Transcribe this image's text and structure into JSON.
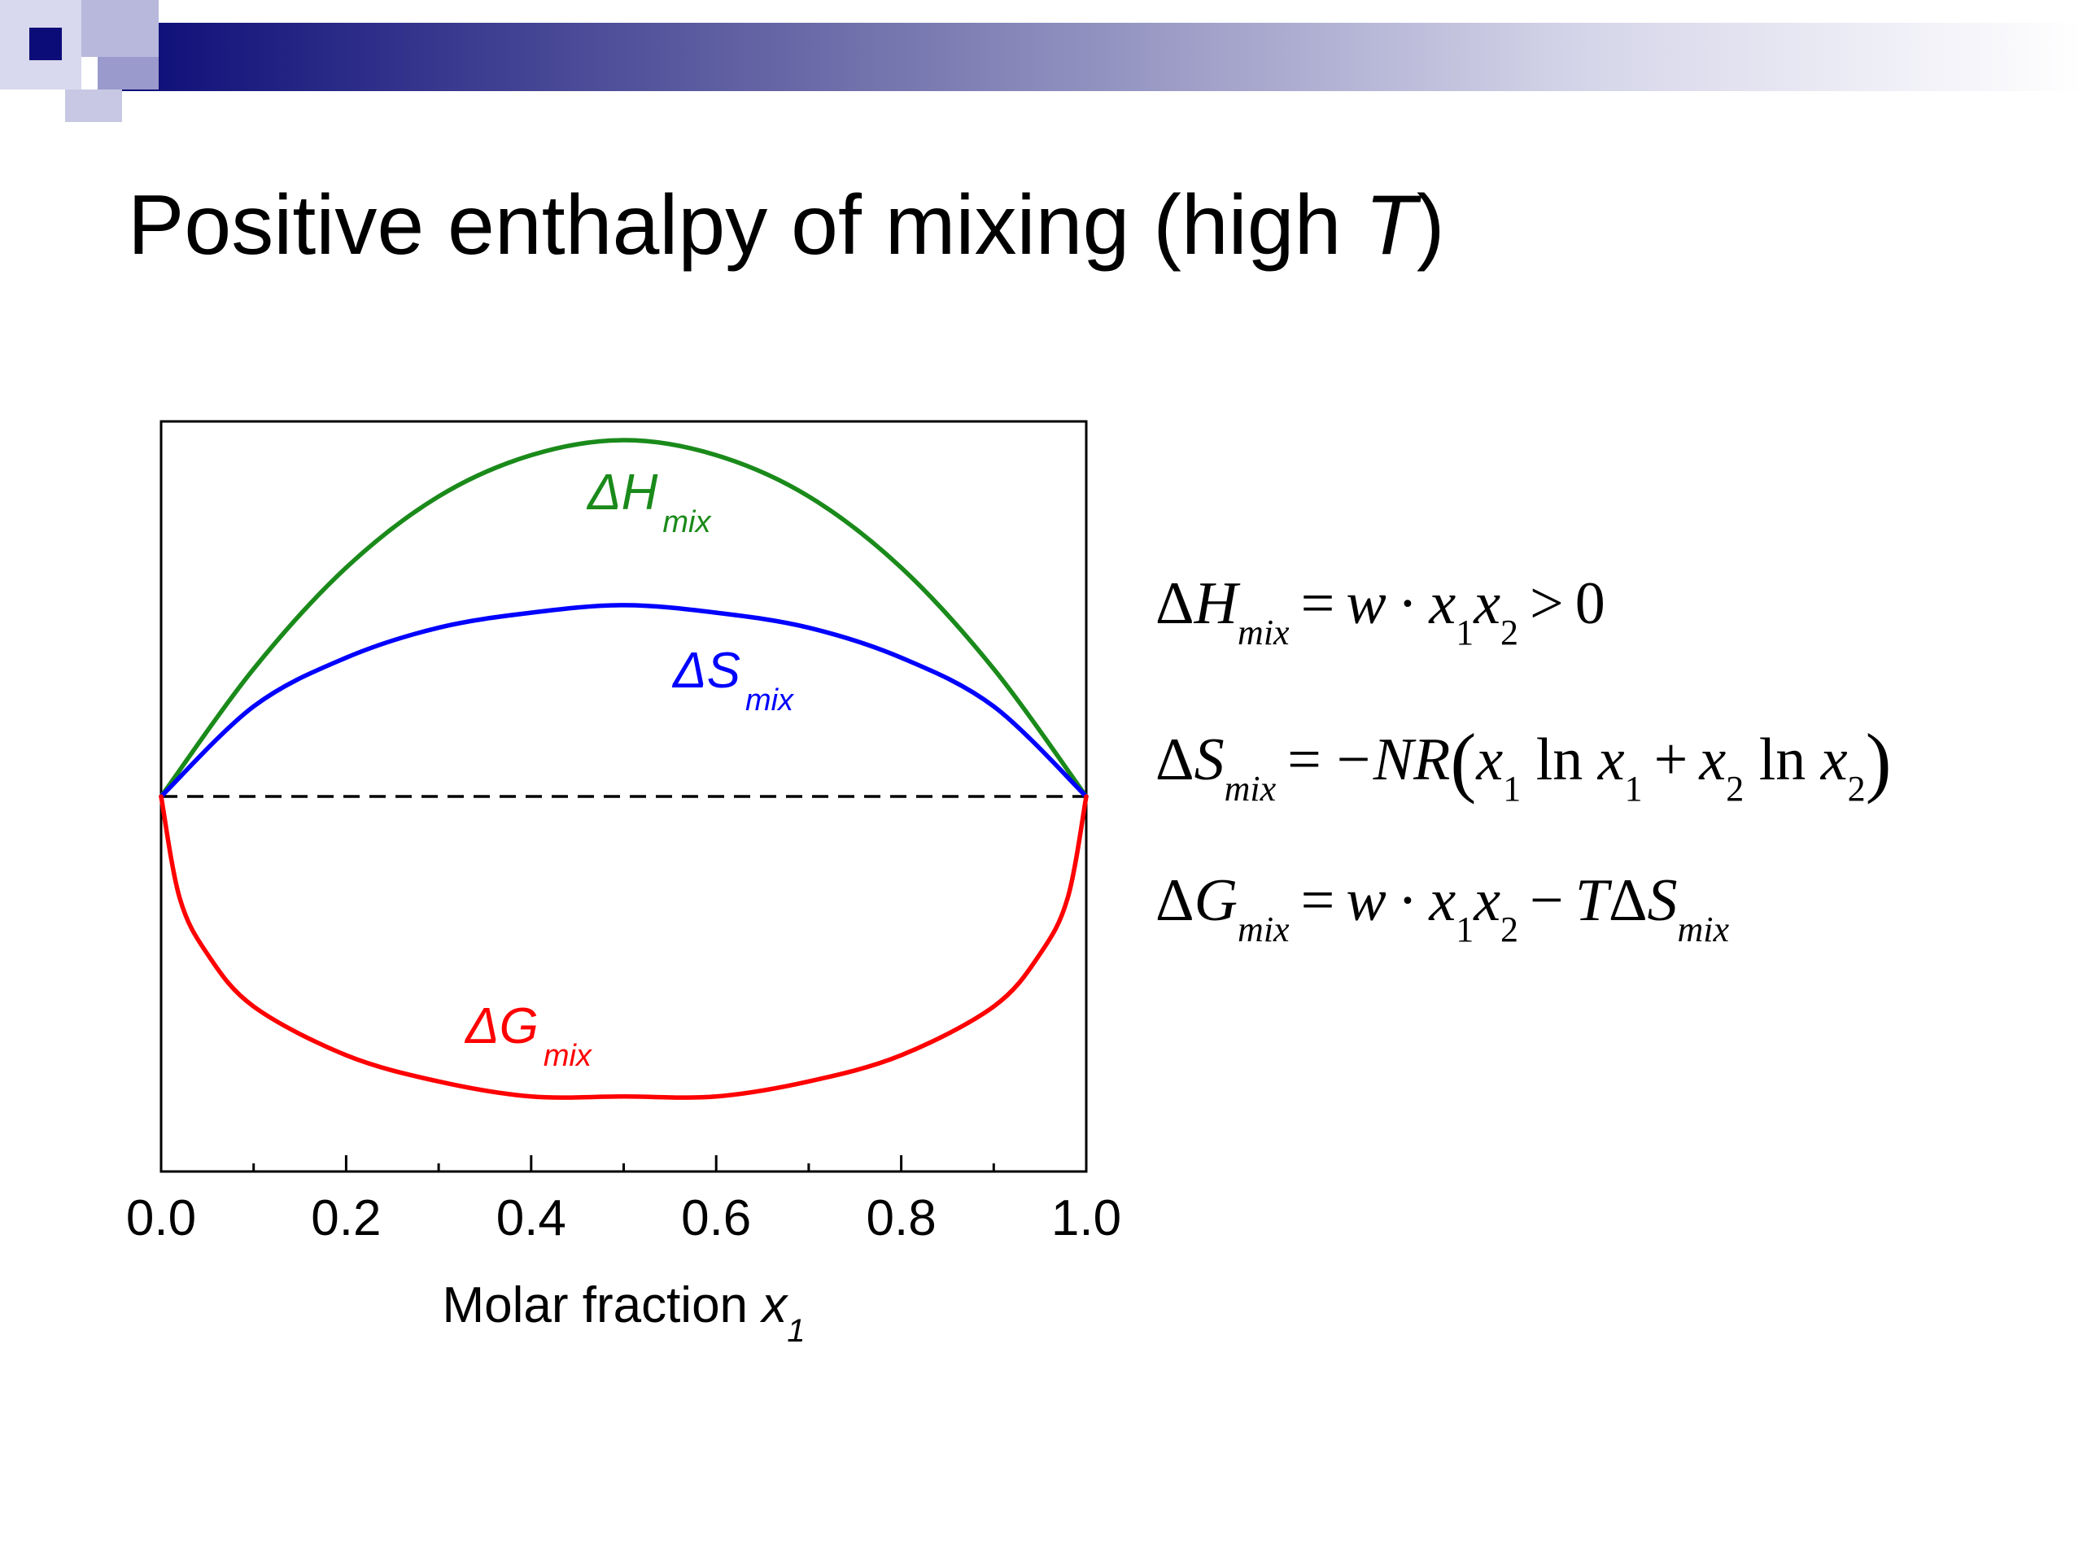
{
  "slide": {
    "title_main": "Positive enthalpy of mixing (high ",
    "title_var": "T",
    "title_close": ")"
  },
  "colors": {
    "h_curve": "#1a8a1a",
    "s_curve": "#0000ff",
    "g_curve": "#ff0000",
    "header_dark": "#0c0c78",
    "header_light": "#d8d8f0"
  },
  "chart_data": {
    "type": "line",
    "xlabel_main": "Molar fraction ",
    "xlabel_var": "x",
    "xlabel_sub": "1",
    "xlim": [
      0,
      1
    ],
    "ylim": [
      -1,
      1
    ],
    "x_ticks": [
      "0.0",
      "0.2",
      "0.4",
      "0.6",
      "0.8",
      "1.0"
    ],
    "zero_line": "dashed",
    "series": [
      {
        "name": "ΔH",
        "name_sub": "mix",
        "color": "#1a8a1a",
        "x": [
          0,
          0.1,
          0.2,
          0.3,
          0.4,
          0.5,
          0.6,
          0.7,
          0.8,
          0.9,
          1.0
        ],
        "y": [
          0,
          0.34,
          0.61,
          0.8,
          0.91,
          0.95,
          0.91,
          0.8,
          0.61,
          0.34,
          0
        ]
      },
      {
        "name": "ΔS",
        "name_sub": "mix",
        "color": "#0000ff",
        "x": [
          0,
          0.1,
          0.2,
          0.3,
          0.4,
          0.5,
          0.6,
          0.7,
          0.8,
          0.9,
          1.0
        ],
        "y": [
          0,
          0.24,
          0.37,
          0.45,
          0.49,
          0.51,
          0.49,
          0.45,
          0.37,
          0.24,
          0
        ]
      },
      {
        "name": "ΔG",
        "name_sub": "mix",
        "color": "#ff0000",
        "x": [
          0,
          0.02,
          0.05,
          0.1,
          0.2,
          0.3,
          0.4,
          0.5,
          0.6,
          0.7,
          0.8,
          0.9,
          0.95,
          0.98,
          1.0
        ],
        "y": [
          0,
          -0.27,
          -0.42,
          -0.56,
          -0.69,
          -0.76,
          -0.8,
          -0.8,
          -0.8,
          -0.76,
          -0.69,
          -0.56,
          -0.42,
          -0.27,
          0
        ]
      }
    ]
  },
  "equations": [
    {
      "lhs_delta": "Δ",
      "lhs_var": "H",
      "lhs_sub": "mix",
      "rhs_parts": [
        "=",
        "w",
        "·",
        "x",
        "1",
        "x",
        "2",
        ">",
        "0"
      ]
    },
    {
      "lhs_delta": "Δ",
      "lhs_var": "S",
      "lhs_sub": "mix",
      "rhs_parts": [
        "=",
        "−NR",
        "(",
        "x",
        "1",
        "ln",
        "x",
        "1",
        "+",
        "x",
        "2",
        "ln",
        "x",
        "2",
        ")"
      ]
    },
    {
      "lhs_delta": "Δ",
      "lhs_var": "G",
      "lhs_sub": "mix",
      "rhs_parts": [
        "=",
        "w",
        "·",
        "x",
        "1",
        "x",
        "2",
        "−",
        "T",
        "Δ",
        "S",
        "mix"
      ]
    }
  ]
}
